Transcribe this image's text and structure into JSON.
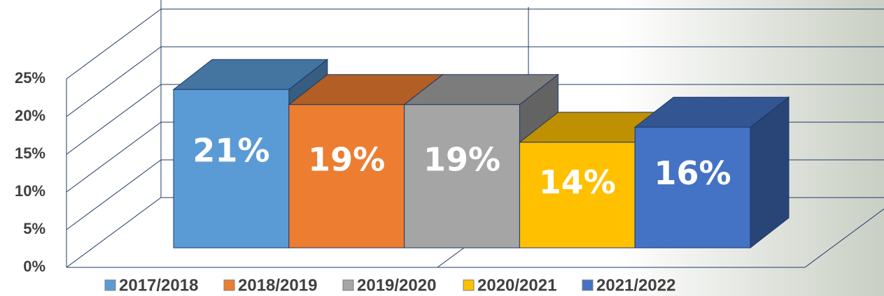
{
  "chart_data": {
    "type": "bar3d",
    "categories": [
      "2017/2018",
      "2018/2019",
      "2019/2020",
      "2020/2021",
      "2021/2022"
    ],
    "values": [
      21,
      19,
      19,
      14,
      16
    ],
    "value_labels": [
      "21%",
      "19%",
      "19%",
      "14%",
      "16%"
    ],
    "colors": [
      "#5b9bd5",
      "#ed7d31",
      "#a5a5a5",
      "#ffc000",
      "#4472c4"
    ],
    "ylim": [
      0,
      25
    ],
    "yticks": [
      {
        "value": 0,
        "label": "0%"
      },
      {
        "value": 5,
        "label": "5%"
      },
      {
        "value": 10,
        "label": "10%"
      },
      {
        "value": 15,
        "label": "15%"
      },
      {
        "value": 20,
        "label": "20%"
      },
      {
        "value": 25,
        "label": "25%"
      }
    ],
    "grid": true,
    "legend": "bottom"
  }
}
